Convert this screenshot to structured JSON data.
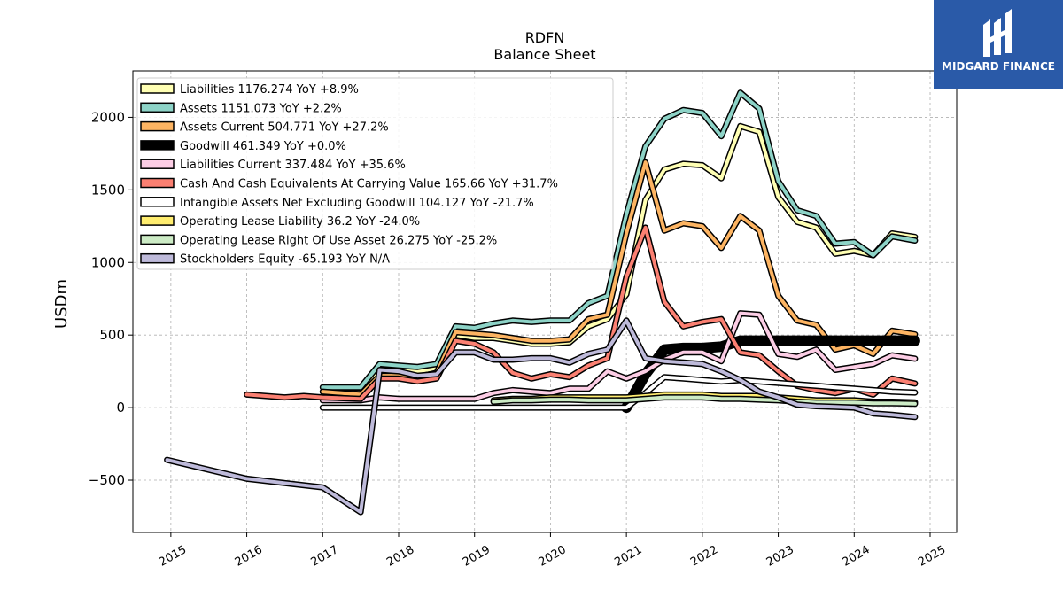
{
  "chart_data": {
    "type": "line",
    "title": "RDFN",
    "subtitle": "Balance  Sheet",
    "ylabel": "USDm",
    "xlabel": "",
    "xlim": [
      2014.5,
      2025.35
    ],
    "ylim": [
      -860,
      2320
    ],
    "x_ticks": [
      2015,
      2016,
      2017,
      2018,
      2019,
      2020,
      2021,
      2022,
      2023,
      2024,
      2025
    ],
    "y_ticks": [
      -500,
      0,
      500,
      1000,
      1500,
      2000
    ],
    "grid": true,
    "legend_position": "upper-left",
    "series": [
      {
        "name": "Liabilities",
        "legend": "Liabilities  1176.274 YoY +8.9%",
        "color": "#ffffb3",
        "points": [
          [
            2017.0,
            110
          ],
          [
            2017.5,
            100
          ],
          [
            2017.75,
            260
          ],
          [
            2018.0,
            260
          ],
          [
            2018.25,
            250
          ],
          [
            2018.5,
            270
          ],
          [
            2018.75,
            500
          ],
          [
            2019.0,
            480
          ],
          [
            2019.25,
            480
          ],
          [
            2019.5,
            460
          ],
          [
            2019.75,
            440
          ],
          [
            2020.0,
            440
          ],
          [
            2020.25,
            450
          ],
          [
            2020.5,
            560
          ],
          [
            2020.75,
            610
          ],
          [
            2021.0,
            780
          ],
          [
            2021.25,
            1430
          ],
          [
            2021.5,
            1640
          ],
          [
            2021.75,
            1680
          ],
          [
            2022.0,
            1670
          ],
          [
            2022.25,
            1580
          ],
          [
            2022.5,
            1940
          ],
          [
            2022.75,
            1900
          ],
          [
            2023.0,
            1450
          ],
          [
            2023.25,
            1280
          ],
          [
            2023.5,
            1240
          ],
          [
            2023.75,
            1060
          ],
          [
            2024.0,
            1080
          ],
          [
            2024.25,
            1050
          ],
          [
            2024.5,
            1200
          ],
          [
            2024.8,
            1176
          ]
        ]
      },
      {
        "name": "Assets",
        "legend": "Assets  1151.073 YoY +2.2%",
        "color": "#8dd3c7",
        "points": [
          [
            2017.0,
            140
          ],
          [
            2017.5,
            140
          ],
          [
            2017.75,
            300
          ],
          [
            2018.0,
            290
          ],
          [
            2018.25,
            280
          ],
          [
            2018.5,
            300
          ],
          [
            2018.75,
            560
          ],
          [
            2019.0,
            550
          ],
          [
            2019.25,
            580
          ],
          [
            2019.5,
            600
          ],
          [
            2019.75,
            590
          ],
          [
            2020.0,
            600
          ],
          [
            2020.25,
            600
          ],
          [
            2020.5,
            720
          ],
          [
            2020.75,
            770
          ],
          [
            2021.0,
            1330
          ],
          [
            2021.25,
            1800
          ],
          [
            2021.5,
            1990
          ],
          [
            2021.75,
            2050
          ],
          [
            2022.0,
            2030
          ],
          [
            2022.25,
            1870
          ],
          [
            2022.5,
            2170
          ],
          [
            2022.75,
            2060
          ],
          [
            2023.0,
            1560
          ],
          [
            2023.25,
            1360
          ],
          [
            2023.5,
            1320
          ],
          [
            2023.75,
            1130
          ],
          [
            2024.0,
            1140
          ],
          [
            2024.25,
            1050
          ],
          [
            2024.5,
            1180
          ],
          [
            2024.8,
            1151
          ]
        ]
      },
      {
        "name": "Assets Current",
        "legend": "Assets Current  504.771 YoY +27.2%",
        "color": "#fdb462",
        "points": [
          [
            2017.0,
            110
          ],
          [
            2017.5,
            90
          ],
          [
            2017.75,
            220
          ],
          [
            2018.0,
            220
          ],
          [
            2018.25,
            210
          ],
          [
            2018.5,
            240
          ],
          [
            2018.75,
            520
          ],
          [
            2019.0,
            510
          ],
          [
            2019.25,
            500
          ],
          [
            2019.5,
            480
          ],
          [
            2019.75,
            460
          ],
          [
            2020.0,
            460
          ],
          [
            2020.25,
            470
          ],
          [
            2020.5,
            610
          ],
          [
            2020.75,
            640
          ],
          [
            2021.0,
            1200
          ],
          [
            2021.25,
            1690
          ],
          [
            2021.5,
            1220
          ],
          [
            2021.75,
            1270
          ],
          [
            2022.0,
            1250
          ],
          [
            2022.25,
            1100
          ],
          [
            2022.5,
            1320
          ],
          [
            2022.75,
            1220
          ],
          [
            2023.0,
            770
          ],
          [
            2023.25,
            600
          ],
          [
            2023.5,
            570
          ],
          [
            2023.75,
            400
          ],
          [
            2024.0,
            430
          ],
          [
            2024.25,
            370
          ],
          [
            2024.5,
            530
          ],
          [
            2024.8,
            505
          ]
        ]
      },
      {
        "name": "Goodwill",
        "legend": "Goodwill  461.349 YoY +0.0%",
        "color": "#000000",
        "points": [
          [
            2021.0,
            0
          ],
          [
            2021.25,
            230
          ],
          [
            2021.5,
            400
          ],
          [
            2021.75,
            410
          ],
          [
            2022.0,
            410
          ],
          [
            2022.25,
            420
          ],
          [
            2022.5,
            461
          ],
          [
            2022.75,
            461
          ],
          [
            2023.0,
            461
          ],
          [
            2023.25,
            461
          ],
          [
            2023.5,
            461
          ],
          [
            2023.75,
            461
          ],
          [
            2024.0,
            461
          ],
          [
            2024.25,
            461
          ],
          [
            2024.5,
            461
          ],
          [
            2024.8,
            461
          ]
        ]
      },
      {
        "name": "Liabilities Current",
        "legend": "Liabilities Current  337.484 YoY +35.6%",
        "color": "#fccde5",
        "points": [
          [
            2017.0,
            50
          ],
          [
            2017.5,
            50
          ],
          [
            2017.75,
            70
          ],
          [
            2018.0,
            60
          ],
          [
            2018.25,
            60
          ],
          [
            2018.5,
            60
          ],
          [
            2018.75,
            60
          ],
          [
            2019.0,
            60
          ],
          [
            2019.25,
            100
          ],
          [
            2019.5,
            120
          ],
          [
            2019.75,
            110
          ],
          [
            2020.0,
            100
          ],
          [
            2020.25,
            130
          ],
          [
            2020.5,
            130
          ],
          [
            2020.75,
            250
          ],
          [
            2021.0,
            200
          ],
          [
            2021.25,
            250
          ],
          [
            2021.5,
            330
          ],
          [
            2021.75,
            380
          ],
          [
            2022.0,
            380
          ],
          [
            2022.25,
            320
          ],
          [
            2022.5,
            650
          ],
          [
            2022.75,
            640
          ],
          [
            2023.0,
            370
          ],
          [
            2023.25,
            350
          ],
          [
            2023.5,
            400
          ],
          [
            2023.75,
            260
          ],
          [
            2024.0,
            280
          ],
          [
            2024.25,
            300
          ],
          [
            2024.5,
            360
          ],
          [
            2024.8,
            337
          ]
        ]
      },
      {
        "name": "Cash And Cash Equivalents At Carrying Value",
        "legend": "Cash And Cash Equivalents At Carrying Value  165.66 YoY +31.7%",
        "color": "#fb8072",
        "points": [
          [
            2016.0,
            90
          ],
          [
            2016.5,
            70
          ],
          [
            2016.75,
            80
          ],
          [
            2017.0,
            70
          ],
          [
            2017.5,
            60
          ],
          [
            2017.75,
            200
          ],
          [
            2018.0,
            200
          ],
          [
            2018.25,
            180
          ],
          [
            2018.5,
            200
          ],
          [
            2018.75,
            460
          ],
          [
            2019.0,
            440
          ],
          [
            2019.25,
            380
          ],
          [
            2019.5,
            240
          ],
          [
            2019.75,
            200
          ],
          [
            2020.0,
            230
          ],
          [
            2020.25,
            210
          ],
          [
            2020.5,
            290
          ],
          [
            2020.75,
            340
          ],
          [
            2021.0,
            900
          ],
          [
            2021.25,
            1240
          ],
          [
            2021.5,
            730
          ],
          [
            2021.75,
            560
          ],
          [
            2022.0,
            590
          ],
          [
            2022.25,
            610
          ],
          [
            2022.5,
            380
          ],
          [
            2022.75,
            360
          ],
          [
            2023.0,
            250
          ],
          [
            2023.25,
            150
          ],
          [
            2023.5,
            120
          ],
          [
            2023.75,
            100
          ],
          [
            2024.0,
            130
          ],
          [
            2024.25,
            90
          ],
          [
            2024.5,
            200
          ],
          [
            2024.8,
            166
          ]
        ]
      },
      {
        "name": "Intangible Assets Net Excluding Goodwill",
        "legend": "Intangible Assets Net Excluding Goodwill  104.127 YoY -21.7%",
        "color": "#ffffff",
        "points": [
          [
            2017.0,
            0
          ],
          [
            2017.5,
            0
          ],
          [
            2017.75,
            0
          ],
          [
            2018.0,
            0
          ],
          [
            2018.5,
            0
          ],
          [
            2019.0,
            0
          ],
          [
            2019.5,
            0
          ],
          [
            2020.0,
            0
          ],
          [
            2020.5,
            0
          ],
          [
            2020.75,
            0
          ],
          [
            2021.0,
            0
          ],
          [
            2021.25,
            100
          ],
          [
            2021.5,
            210
          ],
          [
            2021.75,
            200
          ],
          [
            2022.0,
            190
          ],
          [
            2022.25,
            180
          ],
          [
            2022.5,
            190
          ],
          [
            2022.75,
            180
          ],
          [
            2023.0,
            170
          ],
          [
            2023.25,
            160
          ],
          [
            2023.5,
            150
          ],
          [
            2023.75,
            140
          ],
          [
            2024.0,
            130
          ],
          [
            2024.25,
            120
          ],
          [
            2024.5,
            110
          ],
          [
            2024.8,
            104
          ]
        ]
      },
      {
        "name": "Operating Lease Liability",
        "legend": "Operating Lease Liability  36.2 YoY -24.0%",
        "color": "#ffed6f",
        "points": [
          [
            2019.25,
            50
          ],
          [
            2019.5,
            60
          ],
          [
            2019.75,
            60
          ],
          [
            2020.0,
            70
          ],
          [
            2020.25,
            70
          ],
          [
            2020.5,
            70
          ],
          [
            2020.75,
            70
          ],
          [
            2021.0,
            70
          ],
          [
            2021.25,
            80
          ],
          [
            2021.5,
            90
          ],
          [
            2021.75,
            90
          ],
          [
            2022.0,
            90
          ],
          [
            2022.25,
            80
          ],
          [
            2022.5,
            80
          ],
          [
            2022.75,
            80
          ],
          [
            2023.0,
            70
          ],
          [
            2023.25,
            60
          ],
          [
            2023.5,
            50
          ],
          [
            2023.75,
            50
          ],
          [
            2024.0,
            50
          ],
          [
            2024.25,
            40
          ],
          [
            2024.5,
            40
          ],
          [
            2024.8,
            36
          ]
        ]
      },
      {
        "name": "Operating Lease Right Of Use Asset",
        "legend": "Operating Lease Right Of Use Asset  26.275 YoY -25.2%",
        "color": "#ccebc5",
        "points": [
          [
            2019.25,
            40
          ],
          [
            2019.5,
            50
          ],
          [
            2019.75,
            50
          ],
          [
            2020.0,
            55
          ],
          [
            2020.25,
            55
          ],
          [
            2020.5,
            50
          ],
          [
            2020.75,
            50
          ],
          [
            2021.0,
            50
          ],
          [
            2021.25,
            60
          ],
          [
            2021.5,
            70
          ],
          [
            2021.75,
            70
          ],
          [
            2022.0,
            70
          ],
          [
            2022.25,
            60
          ],
          [
            2022.5,
            60
          ],
          [
            2022.75,
            55
          ],
          [
            2023.0,
            50
          ],
          [
            2023.25,
            40
          ],
          [
            2023.5,
            35
          ],
          [
            2023.75,
            35
          ],
          [
            2024.0,
            35
          ],
          [
            2024.25,
            30
          ],
          [
            2024.5,
            30
          ],
          [
            2024.8,
            26
          ]
        ]
      },
      {
        "name": "Stockholders Equity",
        "legend": "Stockholders Equity  -65.193 YoY N/A",
        "color": "#bebada",
        "points": [
          [
            2014.95,
            -360
          ],
          [
            2016.0,
            -490
          ],
          [
            2016.5,
            -520
          ],
          [
            2017.0,
            -550
          ],
          [
            2017.5,
            -720
          ],
          [
            2017.75,
            260
          ],
          [
            2018.0,
            250
          ],
          [
            2018.25,
            220
          ],
          [
            2018.5,
            230
          ],
          [
            2018.75,
            380
          ],
          [
            2019.0,
            380
          ],
          [
            2019.25,
            330
          ],
          [
            2019.5,
            330
          ],
          [
            2019.75,
            340
          ],
          [
            2020.0,
            340
          ],
          [
            2020.25,
            310
          ],
          [
            2020.5,
            370
          ],
          [
            2020.75,
            400
          ],
          [
            2021.0,
            600
          ],
          [
            2021.25,
            340
          ],
          [
            2021.5,
            320
          ],
          [
            2021.75,
            310
          ],
          [
            2022.0,
            300
          ],
          [
            2022.25,
            250
          ],
          [
            2022.5,
            190
          ],
          [
            2022.75,
            110
          ],
          [
            2023.0,
            70
          ],
          [
            2023.25,
            20
          ],
          [
            2023.5,
            10
          ],
          [
            2023.75,
            5
          ],
          [
            2024.0,
            0
          ],
          [
            2024.25,
            -40
          ],
          [
            2024.5,
            -50
          ],
          [
            2024.8,
            -65
          ]
        ]
      }
    ]
  },
  "logo": {
    "text": "MIDGARD FINANCE",
    "color": "#2a5aa8"
  }
}
